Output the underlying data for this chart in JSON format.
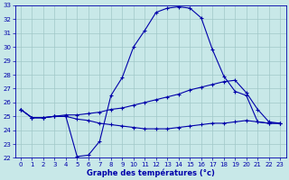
{
  "xlabel": "Graphe des températures (°c)",
  "bg_color": "#c8e8e8",
  "line_color": "#0000aa",
  "grid_color": "#a0c8c8",
  "ylim": [
    22,
    33
  ],
  "xlim": [
    -0.5,
    23.5
  ],
  "yticks": [
    22,
    23,
    24,
    25,
    26,
    27,
    28,
    29,
    30,
    31,
    32,
    33
  ],
  "xticks": [
    0,
    1,
    2,
    3,
    4,
    5,
    6,
    7,
    8,
    9,
    10,
    11,
    12,
    13,
    14,
    15,
    16,
    17,
    18,
    19,
    20,
    21,
    22,
    23
  ],
  "line1_x": [
    0,
    1,
    2,
    3,
    4,
    5,
    6,
    7,
    8,
    9,
    10,
    11,
    12,
    13,
    14,
    15,
    16,
    17,
    18,
    19,
    20,
    21,
    22,
    23
  ],
  "line1_y": [
    25.5,
    24.9,
    24.9,
    25.0,
    25.0,
    22.1,
    22.2,
    23.2,
    26.5,
    27.8,
    30.0,
    31.2,
    32.5,
    32.8,
    32.9,
    32.8,
    32.1,
    29.8,
    27.9,
    26.8,
    26.5,
    24.6,
    24.5,
    24.5
  ],
  "line2_x": [
    0,
    1,
    2,
    3,
    4,
    5,
    6,
    7,
    8,
    9,
    10,
    11,
    12,
    13,
    14,
    15,
    16,
    17,
    18,
    19,
    20,
    21,
    22,
    23
  ],
  "line2_y": [
    25.5,
    24.9,
    24.9,
    25.0,
    25.1,
    25.1,
    25.2,
    25.3,
    25.5,
    25.6,
    25.8,
    26.0,
    26.2,
    26.4,
    26.6,
    26.9,
    27.1,
    27.3,
    27.5,
    27.6,
    26.7,
    25.5,
    24.6,
    24.5
  ],
  "line3_x": [
    0,
    1,
    2,
    3,
    4,
    5,
    6,
    7,
    8,
    9,
    10,
    11,
    12,
    13,
    14,
    15,
    16,
    17,
    18,
    19,
    20,
    21,
    22,
    23
  ],
  "line3_y": [
    25.5,
    24.9,
    24.9,
    25.0,
    25.0,
    24.8,
    24.7,
    24.5,
    24.4,
    24.3,
    24.2,
    24.1,
    24.1,
    24.1,
    24.2,
    24.3,
    24.4,
    24.5,
    24.5,
    24.6,
    24.7,
    24.6,
    24.5,
    24.5
  ],
  "tick_fontsize": 5.0,
  "xlabel_fontsize": 6.0
}
